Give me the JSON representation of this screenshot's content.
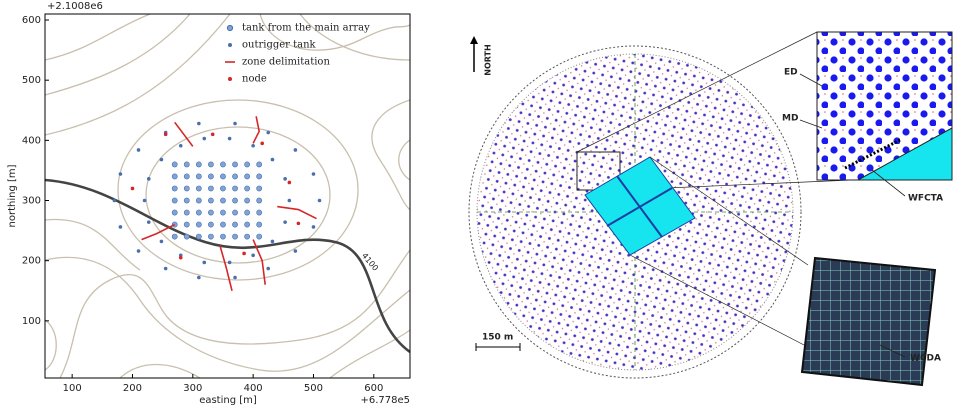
{
  "chart_data": {
    "type": "scatter",
    "x_label": "easting [m]",
    "y_label": "northing [m]",
    "x_offset": "+6.778e5",
    "y_offset": "+2.1008e6",
    "annotation": "4100",
    "xlim": [
      55,
      660
    ],
    "ylim": [
      5,
      610
    ],
    "xticks": [
      100,
      200,
      300,
      400,
      500,
      600
    ],
    "yticks": [
      100,
      200,
      300,
      400,
      500,
      600
    ],
    "grid": false,
    "legend": "upper right",
    "series": [
      {
        "name": "tank from the main array",
        "color": "#7fa3d6",
        "style": "ring",
        "x": [
          270,
          290,
          310,
          330,
          350,
          370,
          390,
          410,
          270,
          290,
          310,
          330,
          350,
          370,
          390,
          410,
          270,
          290,
          310,
          330,
          350,
          370,
          390,
          410,
          270,
          290,
          310,
          330,
          350,
          370,
          390,
          410,
          270,
          290,
          310,
          330,
          350,
          370,
          390,
          410,
          270,
          290,
          310,
          330,
          350,
          370,
          390,
          410,
          270,
          290,
          310,
          330,
          350,
          370,
          390,
          410
        ],
        "y": [
          240,
          240,
          240,
          240,
          240,
          240,
          240,
          240,
          260,
          260,
          260,
          260,
          260,
          260,
          260,
          260,
          280,
          280,
          280,
          280,
          280,
          280,
          280,
          280,
          300,
          300,
          300,
          300,
          300,
          300,
          300,
          300,
          320,
          320,
          320,
          320,
          320,
          320,
          320,
          320,
          340,
          340,
          340,
          340,
          340,
          340,
          340,
          340,
          360,
          360,
          360,
          360,
          360,
          360,
          360,
          360
        ]
      },
      {
        "name": "outrigger tank",
        "color": "#4a6fae",
        "style": "dot",
        "x": [
          460,
          453,
          432,
          400,
          361,
          319,
          280,
          248,
          227,
          220,
          227,
          248,
          280,
          319,
          361,
          400,
          432,
          453,
          510,
          500,
          470,
          425,
          370,
          310,
          255,
          210,
          180,
          170,
          180,
          210,
          255,
          310,
          370,
          425,
          470,
          500
        ],
        "y": [
          300,
          336,
          368,
          391,
          403,
          403,
          391,
          368,
          336,
          300,
          264,
          232,
          209,
          197,
          197,
          209,
          232,
          264,
          300,
          344,
          384,
          413,
          428,
          428,
          413,
          384,
          344,
          300,
          256,
          216,
          187,
          172,
          172,
          187,
          216,
          256
        ]
      },
      {
        "name": "zone delimitation",
        "color": "#d62728",
        "style": "line",
        "lines": [
          {
            "x": [
              300,
              285,
              270
            ],
            "y": [
              390,
              410,
              430
            ]
          },
          {
            "x": [
              400,
              410,
              405
            ],
            "y": [
              395,
              415,
              440
            ]
          },
          {
            "x": [
              440,
              475,
              505
            ],
            "y": [
              290,
              285,
              270
            ]
          },
          {
            "x": [
              400,
              415,
              420
            ],
            "y": [
              235,
              200,
              160
            ]
          },
          {
            "x": [
              345,
              355,
              365
            ],
            "y": [
              225,
              190,
              150
            ]
          },
          {
            "x": [
              270,
              240,
              215
            ],
            "y": [
              260,
              245,
              235
            ]
          }
        ]
      },
      {
        "name": "node",
        "color": "#d62728",
        "style": "dot",
        "x": [
          255,
          333,
          415,
          460,
          475,
          385,
          280,
          200
        ],
        "y": [
          410,
          410,
          395,
          330,
          262,
          212,
          205,
          320
        ]
      }
    ]
  },
  "diagram": {
    "north": "NORTH",
    "scale": "150 m",
    "labels": [
      "ED",
      "MD",
      "WFCTA",
      "WCDA"
    ]
  }
}
